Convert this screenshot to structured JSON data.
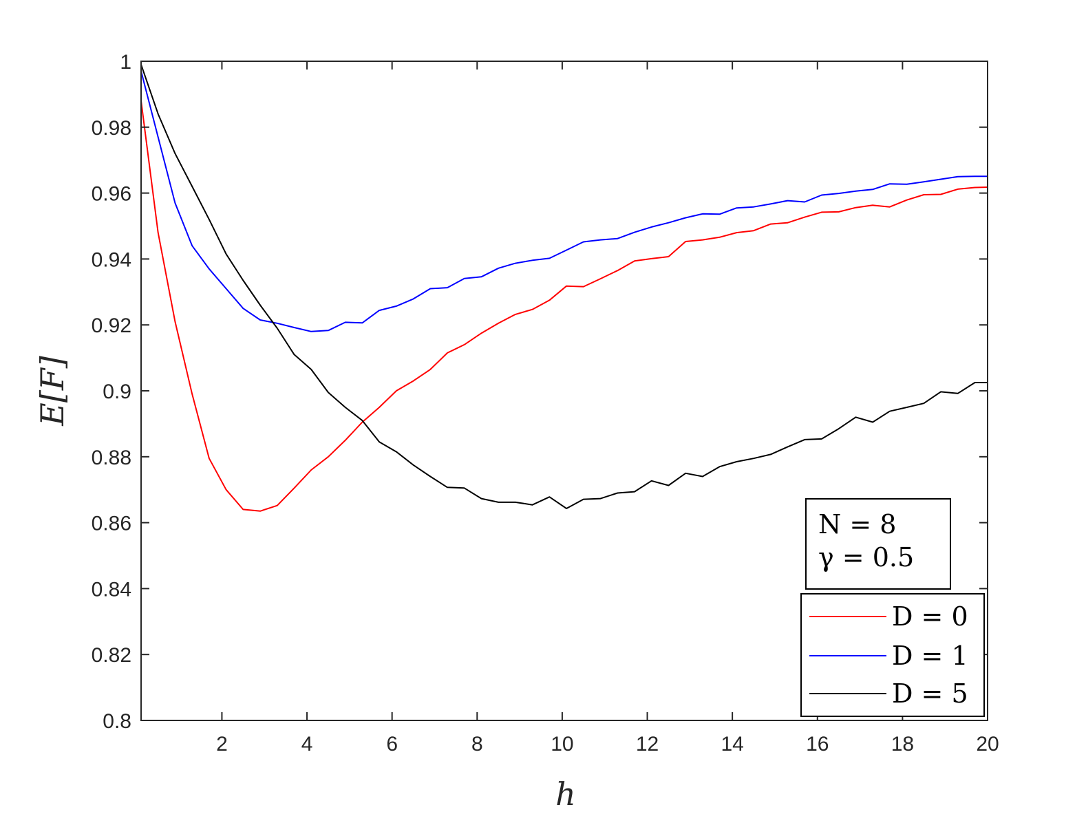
{
  "chart_data": {
    "type": "line",
    "xlabel": "h",
    "ylabel": "E[F]",
    "xlim": [
      0.1,
      20
    ],
    "ylim": [
      0.8,
      1
    ],
    "xticks": [
      2,
      4,
      6,
      8,
      10,
      12,
      14,
      16,
      18,
      20
    ],
    "yticks": [
      0.8,
      0.82,
      0.84,
      0.86,
      0.88,
      0.9,
      0.92,
      0.94,
      0.96,
      0.98,
      1
    ],
    "xtick_labels": [
      "2",
      "4",
      "6",
      "8",
      "10",
      "12",
      "14",
      "16",
      "18",
      "20"
    ],
    "ytick_labels": [
      "0.8",
      "0.82",
      "0.84",
      "0.86",
      "0.88",
      "0.9",
      "0.92",
      "0.94",
      "0.96",
      "0.98",
      "1"
    ],
    "grid": false,
    "legend_position": "bottom-right",
    "annotation": [
      "N = 8",
      "γ = 0.5"
    ],
    "series": [
      {
        "name": "D = 0",
        "color": "#ff0000",
        "x": [
          0.1,
          0.5,
          0.9,
          1.3,
          1.7,
          2.1,
          2.5,
          2.9,
          3.3,
          3.7,
          4.1,
          4.5,
          4.9,
          5.3,
          5.7,
          6.1,
          6.5,
          6.9,
          7.3,
          7.7,
          8.1,
          8.5,
          8.9,
          9.3,
          9.7,
          10.1,
          10.5,
          10.9,
          11.3,
          11.7,
          12.1,
          12.5,
          12.9,
          13.3,
          13.7,
          14.1,
          14.5,
          14.9,
          15.3,
          15.7,
          16.1,
          16.5,
          16.9,
          17.3,
          17.7,
          18.1,
          18.5,
          18.9,
          19.3,
          19.7,
          20.0
        ],
        "y": [
          0.988,
          0.948,
          0.921,
          0.899,
          0.8795,
          0.87,
          0.864,
          0.8635,
          0.8652,
          0.8705,
          0.876,
          0.88,
          0.885,
          0.8905,
          0.895,
          0.9,
          0.903,
          0.9065,
          0.9115,
          0.914,
          0.9175,
          0.9205,
          0.9232,
          0.9247,
          0.9275,
          0.9318,
          0.9316,
          0.934,
          0.9365,
          0.9394,
          0.9401,
          0.9407,
          0.9453,
          0.9458,
          0.9466,
          0.948,
          0.9486,
          0.9506,
          0.951,
          0.9527,
          0.9542,
          0.9543,
          0.9556,
          0.9563,
          0.9558,
          0.9579,
          0.9595,
          0.9596,
          0.9612,
          0.9617,
          0.9618
        ]
      },
      {
        "name": "D = 1",
        "color": "#0000ff",
        "x": [
          0.1,
          0.5,
          0.9,
          1.3,
          1.7,
          2.1,
          2.5,
          2.9,
          3.3,
          3.7,
          4.1,
          4.5,
          4.9,
          5.3,
          5.7,
          6.1,
          6.5,
          6.9,
          7.3,
          7.7,
          8.1,
          8.5,
          8.9,
          9.3,
          9.7,
          10.1,
          10.5,
          10.9,
          11.3,
          11.7,
          12.1,
          12.5,
          12.9,
          13.3,
          13.7,
          14.1,
          14.5,
          14.9,
          15.3,
          15.7,
          16.1,
          16.5,
          16.9,
          17.3,
          17.7,
          18.1,
          18.5,
          18.9,
          19.3,
          19.7,
          20.0
        ],
        "y": [
          0.997,
          0.977,
          0.957,
          0.944,
          0.937,
          0.931,
          0.925,
          0.9215,
          0.9205,
          0.9192,
          0.918,
          0.9183,
          0.9208,
          0.9206,
          0.9244,
          0.9257,
          0.9279,
          0.931,
          0.9313,
          0.9341,
          0.9346,
          0.9372,
          0.9387,
          0.9396,
          0.9402,
          0.9427,
          0.9452,
          0.9458,
          0.9462,
          0.9481,
          0.9497,
          0.951,
          0.9525,
          0.9537,
          0.9536,
          0.9555,
          0.9558,
          0.9567,
          0.9577,
          0.9573,
          0.9594,
          0.9599,
          0.9606,
          0.9611,
          0.9628,
          0.9627,
          0.9634,
          0.9642,
          0.965,
          0.9651,
          0.9651
        ]
      },
      {
        "name": "D = 5",
        "color": "#000000",
        "x": [
          0.1,
          0.5,
          0.9,
          1.3,
          1.7,
          2.1,
          2.5,
          2.9,
          3.3,
          3.7,
          4.1,
          4.5,
          4.9,
          5.3,
          5.7,
          6.1,
          6.5,
          6.9,
          7.3,
          7.7,
          8.1,
          8.5,
          8.9,
          9.3,
          9.7,
          10.1,
          10.5,
          10.9,
          11.3,
          11.7,
          12.1,
          12.5,
          12.9,
          13.3,
          13.7,
          14.1,
          14.5,
          14.9,
          15.3,
          15.7,
          16.1,
          16.5,
          16.9,
          17.3,
          17.7,
          18.1,
          18.5,
          18.9,
          19.3,
          19.7,
          20.0
        ],
        "y": [
          0.999,
          0.984,
          0.972,
          0.962,
          0.952,
          0.9415,
          0.9335,
          0.926,
          0.919,
          0.911,
          0.9065,
          0.8995,
          0.895,
          0.891,
          0.8845,
          0.8815,
          0.8775,
          0.874,
          0.8707,
          0.8705,
          0.8673,
          0.8662,
          0.8662,
          0.8654,
          0.8678,
          0.8643,
          0.8671,
          0.8673,
          0.869,
          0.8694,
          0.8727,
          0.8713,
          0.875,
          0.874,
          0.877,
          0.8785,
          0.8795,
          0.8807,
          0.883,
          0.8852,
          0.8854,
          0.8885,
          0.892,
          0.8905,
          0.8938,
          0.895,
          0.8962,
          0.8997,
          0.8992,
          0.9025,
          0.9025
        ]
      }
    ]
  }
}
